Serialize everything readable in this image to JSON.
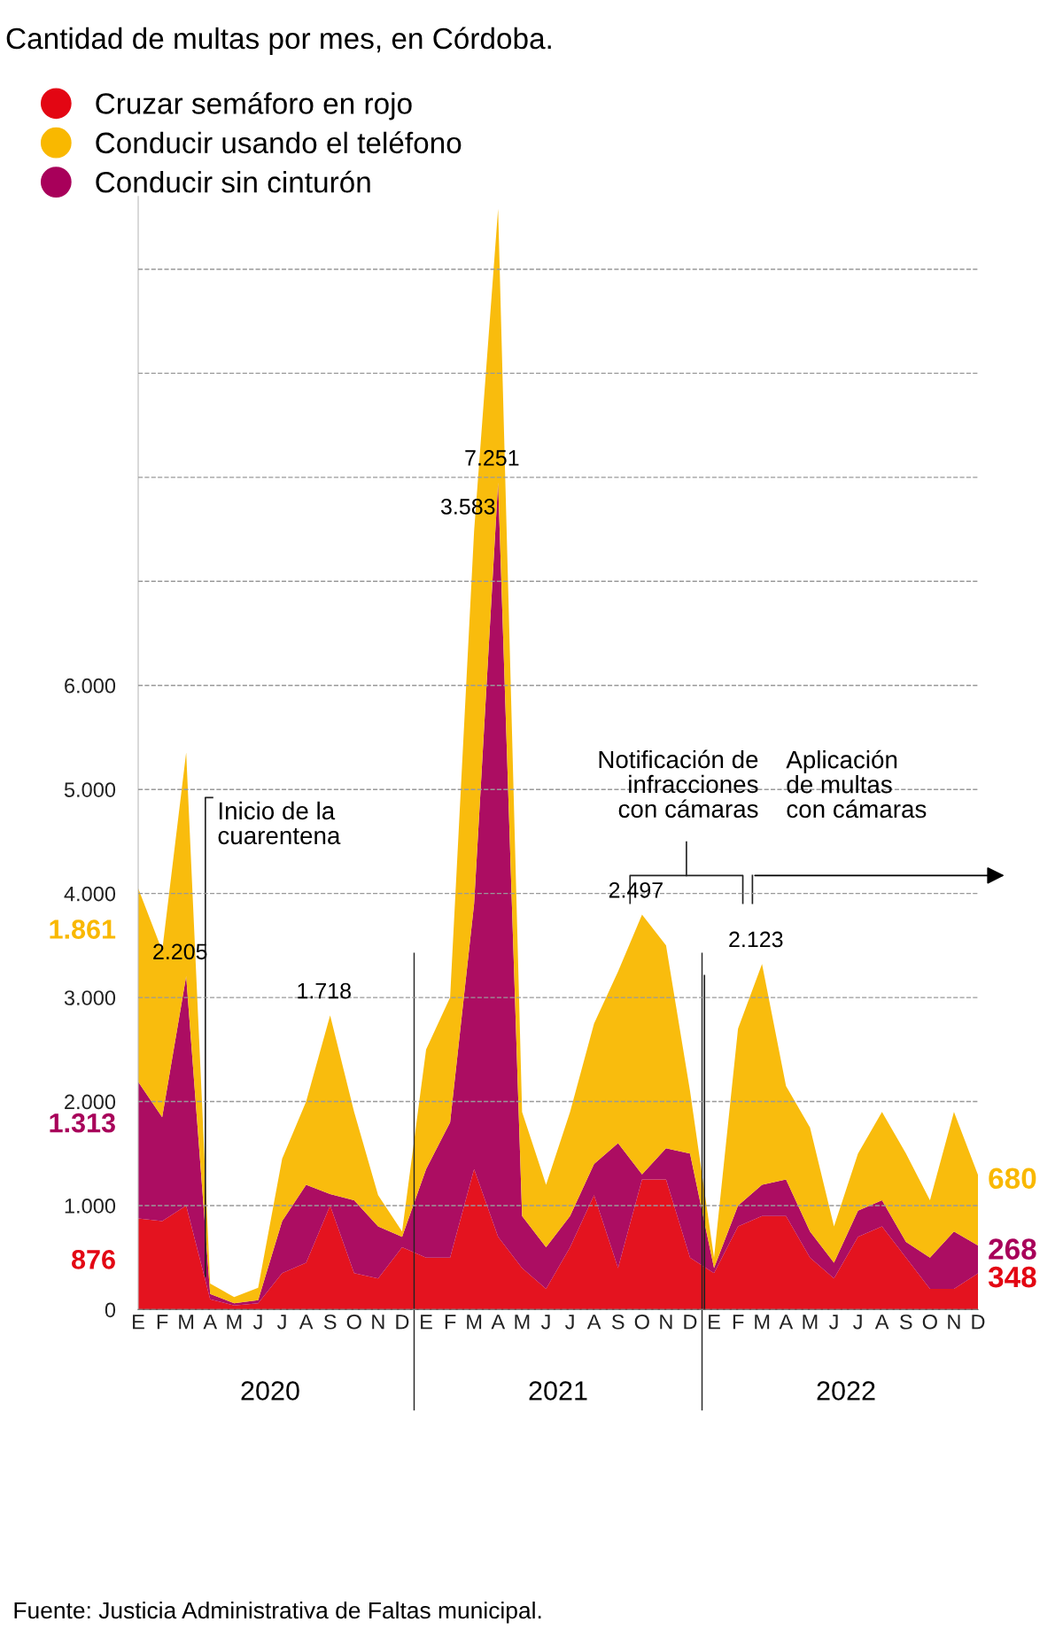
{
  "chart_data": {
    "type": "area",
    "stacked": true,
    "title": "Cantidad de multas por mes, en Córdoba.",
    "categories": [
      "E",
      "F",
      "M",
      "A",
      "M",
      "J",
      "J",
      "A",
      "S",
      "O",
      "N",
      "D",
      "E",
      "F",
      "M",
      "A",
      "M",
      "J",
      "J",
      "A",
      "S",
      "O",
      "N",
      "D",
      "E",
      "F",
      "M",
      "A",
      "M",
      "J",
      "J",
      "A",
      "S",
      "O",
      "N",
      "D"
    ],
    "series": [
      {
        "name": "Cruzar semáforo en rojo",
        "color": "#e30613",
        "values": [
          876,
          850,
          1000,
          100,
          40,
          60,
          350,
          450,
          1000,
          350,
          300,
          600,
          500,
          500,
          1350,
          700,
          400,
          200,
          600,
          1100,
          400,
          1250,
          1250,
          500,
          350,
          800,
          900,
          900,
          500,
          300,
          700,
          800,
          500,
          200,
          200,
          348
        ],
        "value_labels": [
          "876",
          null,
          null,
          null,
          null,
          null,
          null,
          null,
          null,
          null,
          null,
          null,
          null,
          null,
          null,
          null,
          null,
          null,
          null,
          null,
          null,
          null,
          null,
          null,
          null,
          null,
          null,
          null,
          null,
          null,
          null,
          null,
          null,
          null,
          null,
          "348"
        ]
      },
      {
        "name": "Conducir sin cinturón",
        "color": "#a8005a",
        "values": [
          1313,
          1000,
          2205,
          50,
          20,
          30,
          500,
          750,
          110,
          700,
          500,
          100,
          850,
          1300,
          2550,
          7251,
          500,
          400,
          300,
          300,
          1200,
          50,
          300,
          1000,
          50,
          200,
          300,
          350,
          250,
          150,
          250,
          250,
          150,
          300,
          550,
          268
        ],
        "value_labels": [
          "1.313",
          null,
          "2.205",
          null,
          null,
          null,
          null,
          null,
          null,
          null,
          null,
          null,
          null,
          null,
          null,
          "7.251",
          null,
          null,
          null,
          null,
          null,
          null,
          null,
          null,
          null,
          null,
          null,
          null,
          null,
          null,
          null,
          null,
          null,
          null,
          null,
          "268"
        ]
      },
      {
        "name": "Conducir usando el teléfono",
        "color": "#f9b800",
        "values": [
          1861,
          1600,
          2150,
          100,
          60,
          120,
          600,
          800,
          1718,
          850,
          300,
          50,
          1150,
          1200,
          3583,
          2630,
          1000,
          600,
          1000,
          1350,
          1650,
          2497,
          1950,
          600,
          100,
          1700,
          2123,
          900,
          1000,
          350,
          550,
          850,
          850,
          550,
          1150,
          680
        ],
        "value_labels": [
          "1.861",
          null,
          null,
          null,
          null,
          null,
          null,
          null,
          "1.718",
          null,
          null,
          null,
          null,
          null,
          "3.583",
          null,
          null,
          null,
          null,
          null,
          null,
          "2.497",
          null,
          null,
          null,
          null,
          "2.123",
          null,
          null,
          null,
          null,
          null,
          null,
          null,
          null,
          "680"
        ]
      }
    ],
    "ylim": [
      0,
      10700
    ],
    "yticks": [
      {
        "value": 0,
        "label": "0"
      },
      {
        "value": 1000,
        "label": "1.000"
      },
      {
        "value": 2000,
        "label": "2.000"
      },
      {
        "value": 3000,
        "label": "3.000"
      },
      {
        "value": 4000,
        "label": "4.000"
      },
      {
        "value": 5000,
        "label": "5.000"
      },
      {
        "value": 6000,
        "label": "6.000"
      },
      {
        "value": 7000,
        "label": null
      },
      {
        "value": 8000,
        "label": null
      },
      {
        "value": 9000,
        "label": null
      },
      {
        "value": 10000,
        "label": null
      }
    ],
    "grid": "y",
    "legend": "top left",
    "annotations": [
      "2020",
      "2021",
      "2022",
      "Inicio de la\ncuarentena",
      "Notificación de\ninfracciones\ncon cámaras",
      "Aplicación\nde multas\ncon cámaras",
      "Fuente: Justicia Administrativa de Faltas municipal."
    ]
  }
}
